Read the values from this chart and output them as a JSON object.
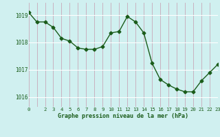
{
  "x": [
    0,
    1,
    2,
    3,
    4,
    5,
    6,
    7,
    8,
    9,
    10,
    11,
    12,
    13,
    14,
    15,
    16,
    17,
    18,
    19,
    20,
    21,
    22,
    23
  ],
  "y": [
    1019.1,
    1018.75,
    1018.75,
    1018.55,
    1018.15,
    1018.05,
    1017.8,
    1017.75,
    1017.75,
    1017.85,
    1018.35,
    1018.4,
    1018.95,
    1018.75,
    1018.35,
    1017.25,
    1016.65,
    1016.45,
    1016.3,
    1016.2,
    1016.2,
    1016.6,
    1016.9,
    1017.2
  ],
  "line_color": "#1a5c1a",
  "marker": "D",
  "marker_size": 2.5,
  "background_color": "#d0f0f0",
  "grid_color_x": "#c8a8b8",
  "grid_color_y": "#ffffff",
  "xlabel": "Graphe pression niveau de la mer (hPa)",
  "xlabel_color": "#1a5c1a",
  "tick_color": "#1a5c1a",
  "ylabel_ticks": [
    1016,
    1017,
    1018,
    1019
  ],
  "xlim": [
    0,
    23
  ],
  "ylim": [
    1015.65,
    1019.45
  ],
  "xtick_labels": [
    "0",
    "",
    "2",
    "3",
    "4",
    "5",
    "6",
    "7",
    "8",
    "9",
    "10",
    "11",
    "12",
    "13",
    "14",
    "15",
    "16",
    "17",
    "18",
    "19",
    "20",
    "21",
    "22",
    "23"
  ]
}
